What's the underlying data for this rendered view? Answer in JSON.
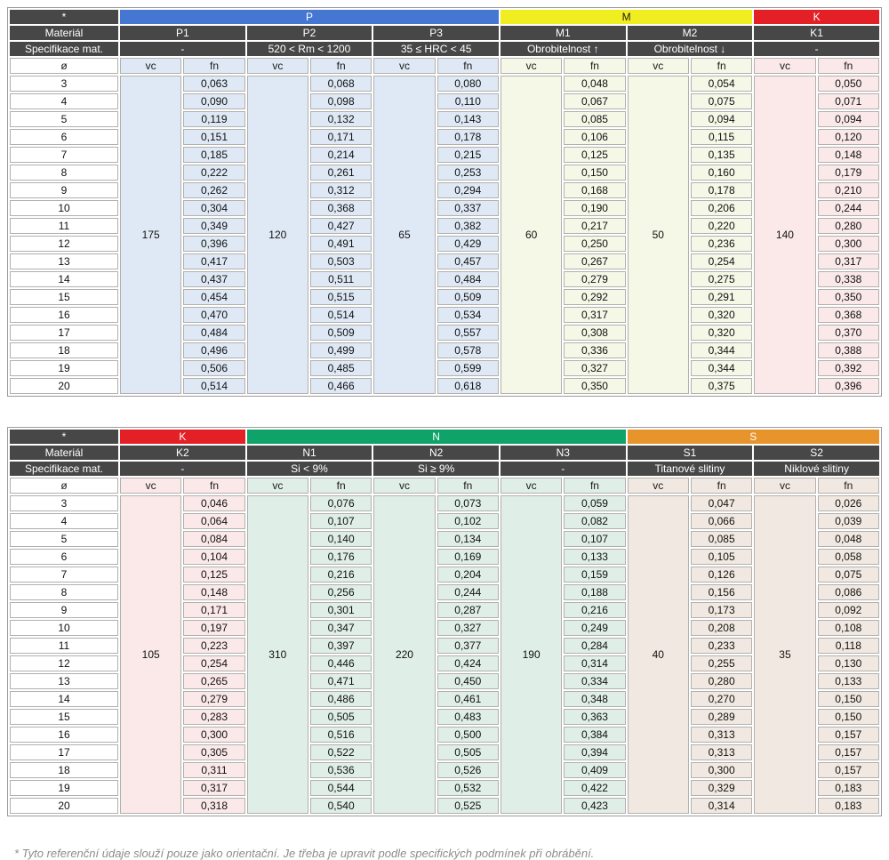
{
  "labels": {
    "asterisk": "*",
    "material": "Materiál",
    "spec": "Specifikace mat.",
    "diameter": "ø",
    "vc": "vc",
    "fn": "fn"
  },
  "diameters": [
    "3",
    "4",
    "5",
    "6",
    "7",
    "8",
    "9",
    "10",
    "11",
    "12",
    "13",
    "14",
    "15",
    "16",
    "17",
    "18",
    "19",
    "20"
  ],
  "footnote": "* Tyto referenční údaje slouží pouze jako orientační. Je třeba je upravit podle specifických podmínek při obrábění.",
  "colors": {
    "header_dark": "#474747",
    "cell_border": "#b2b0ae",
    "outer_border": "#9c9c9c"
  },
  "tables": [
    {
      "groups": [
        {
          "label": "P",
          "color": "#4577d2",
          "text_color": "#ffffff",
          "span": 3
        },
        {
          "label": "M",
          "color": "#f0ee20",
          "text_color": "#1a1a1a",
          "span": 2
        },
        {
          "label": "K",
          "color": "#e32026",
          "text_color": "#ffffff",
          "span": 1
        }
      ],
      "columns": [
        {
          "material": "P1",
          "spec": "-",
          "vc": "175",
          "tint": "#dfe9f5",
          "fn": [
            "0,063",
            "0,090",
            "0,119",
            "0,151",
            "0,185",
            "0,222",
            "0,262",
            "0,304",
            "0,349",
            "0,396",
            "0,417",
            "0,437",
            "0,454",
            "0,470",
            "0,484",
            "0,496",
            "0,506",
            "0,514"
          ]
        },
        {
          "material": "P2",
          "spec": "520 < Rm < 1200",
          "vc": "120",
          "tint": "#dfe9f5",
          "fn": [
            "0,068",
            "0,098",
            "0,132",
            "0,171",
            "0,214",
            "0,261",
            "0,312",
            "0,368",
            "0,427",
            "0,491",
            "0,503",
            "0,511",
            "0,515",
            "0,514",
            "0,509",
            "0,499",
            "0,485",
            "0,466"
          ]
        },
        {
          "material": "P3",
          "spec": "35 ≤ HRC < 45",
          "vc": "65",
          "tint": "#dfe9f5",
          "fn": [
            "0,080",
            "0,110",
            "0,143",
            "0,178",
            "0,215",
            "0,253",
            "0,294",
            "0,337",
            "0,382",
            "0,429",
            "0,457",
            "0,484",
            "0,509",
            "0,534",
            "0,557",
            "0,578",
            "0,599",
            "0,618"
          ]
        },
        {
          "material": "M1",
          "spec": "Obrobitelnost ↑",
          "vc": "60",
          "tint": "#f5f8e6",
          "fn": [
            "0,048",
            "0,067",
            "0,085",
            "0,106",
            "0,125",
            "0,150",
            "0,168",
            "0,190",
            "0,217",
            "0,250",
            "0,267",
            "0,279",
            "0,292",
            "0,317",
            "0,308",
            "0,336",
            "0,327",
            "0,350"
          ]
        },
        {
          "material": "M2",
          "spec": "Obrobitelnost ↓",
          "vc": "50",
          "tint": "#f5f8e6",
          "fn": [
            "0,054",
            "0,075",
            "0,094",
            "0,115",
            "0,135",
            "0,160",
            "0,178",
            "0,206",
            "0,220",
            "0,236",
            "0,254",
            "0,275",
            "0,291",
            "0,320",
            "0,320",
            "0,344",
            "0,344",
            "0,375"
          ]
        },
        {
          "material": "K1",
          "spec": "-",
          "vc": "140",
          "tint": "#fbe9e9",
          "fn": [
            "0,050",
            "0,071",
            "0,094",
            "0,120",
            "0,148",
            "0,179",
            "0,210",
            "0,244",
            "0,280",
            "0,300",
            "0,317",
            "0,338",
            "0,350",
            "0,368",
            "0,370",
            "0,388",
            "0,392",
            "0,396"
          ]
        }
      ]
    },
    {
      "groups": [
        {
          "label": "K",
          "color": "#e32026",
          "text_color": "#ffffff",
          "span": 1
        },
        {
          "label": "N",
          "color": "#10a369",
          "text_color": "#ffffff",
          "span": 3
        },
        {
          "label": "S",
          "color": "#e8942d",
          "text_color": "#ffffff",
          "span": 2
        }
      ],
      "columns": [
        {
          "material": "K2",
          "spec": "-",
          "vc": "105",
          "tint": "#fbe9e9",
          "fn": [
            "0,046",
            "0,064",
            "0,084",
            "0,104",
            "0,125",
            "0,148",
            "0,171",
            "0,197",
            "0,223",
            "0,254",
            "0,265",
            "0,279",
            "0,283",
            "0,300",
            "0,305",
            "0,311",
            "0,317",
            "0,318"
          ]
        },
        {
          "material": "N1",
          "spec": "Si < 9%",
          "vc": "310",
          "tint": "#dfeee7",
          "fn": [
            "0,076",
            "0,107",
            "0,140",
            "0,176",
            "0,216",
            "0,256",
            "0,301",
            "0,347",
            "0,397",
            "0,446",
            "0,471",
            "0,486",
            "0,505",
            "0,516",
            "0,522",
            "0,536",
            "0,544",
            "0,540"
          ]
        },
        {
          "material": "N2",
          "spec": "Si ≥ 9%",
          "vc": "220",
          "tint": "#dfeee7",
          "fn": [
            "0,073",
            "0,102",
            "0,134",
            "0,169",
            "0,204",
            "0,244",
            "0,287",
            "0,327",
            "0,377",
            "0,424",
            "0,450",
            "0,461",
            "0,483",
            "0,500",
            "0,505",
            "0,526",
            "0,532",
            "0,525"
          ]
        },
        {
          "material": "N3",
          "spec": "-",
          "vc": "190",
          "tint": "#dfeee7",
          "fn": [
            "0,059",
            "0,082",
            "0,107",
            "0,133",
            "0,159",
            "0,188",
            "0,216",
            "0,249",
            "0,284",
            "0,314",
            "0,334",
            "0,348",
            "0,363",
            "0,384",
            "0,394",
            "0,409",
            "0,422",
            "0,423"
          ]
        },
        {
          "material": "S1",
          "spec": "Titanové slitiny",
          "vc": "40",
          "tint": "#f1e9e1",
          "fn": [
            "0,047",
            "0,066",
            "0,085",
            "0,105",
            "0,126",
            "0,156",
            "0,173",
            "0,208",
            "0,233",
            "0,255",
            "0,280",
            "0,270",
            "0,289",
            "0,313",
            "0,313",
            "0,300",
            "0,329",
            "0,314"
          ]
        },
        {
          "material": "S2",
          "spec": "Niklové slitiny",
          "vc": "35",
          "tint": "#f1e9e1",
          "fn": [
            "0,026",
            "0,039",
            "0,048",
            "0,058",
            "0,075",
            "0,086",
            "0,092",
            "0,108",
            "0,118",
            "0,130",
            "0,133",
            "0,150",
            "0,150",
            "0,157",
            "0,157",
            "0,157",
            "0,183",
            "0,183"
          ]
        }
      ]
    }
  ]
}
